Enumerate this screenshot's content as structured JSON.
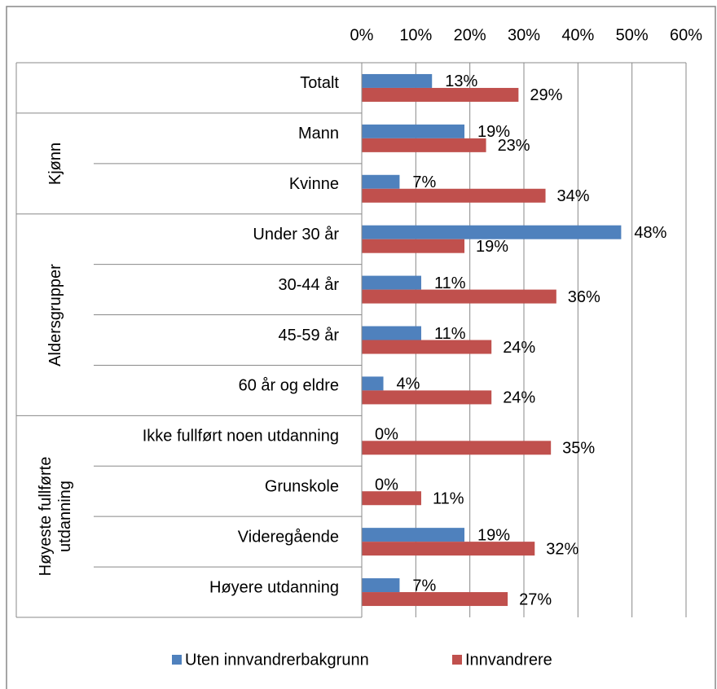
{
  "chart_data": {
    "type": "bar",
    "orientation": "horizontal",
    "groups": [
      {
        "name": null,
        "categories": [
          "Totalt"
        ]
      },
      {
        "name": "Kjønn",
        "categories": [
          "Mann",
          "Kvinne"
        ]
      },
      {
        "name": "Aldersgrupper",
        "categories": [
          "Under 30 år",
          "30-44 år",
          "45-59 år",
          "60 år og eldre"
        ]
      },
      {
        "name": "Høyeste fullførte utdanning",
        "categories": [
          "Ikke fullført noen utdanning",
          "Grunskole",
          "Videregående",
          "Høyere utdanning"
        ]
      }
    ],
    "series": [
      {
        "name": "Uten innvandrerbakgrunn",
        "color": "#4f81bd",
        "values": [
          13,
          19,
          7,
          48,
          11,
          11,
          4,
          0,
          0,
          19,
          7
        ],
        "value_labels": [
          "13%",
          "19%",
          "7%",
          "48%",
          "11%",
          "11%",
          "4%",
          "0%",
          "0%",
          "19%",
          "7%"
        ]
      },
      {
        "name": "Innvandrere",
        "color": "#c0504d",
        "values": [
          29,
          23,
          34,
          19,
          36,
          24,
          24,
          35,
          11,
          32,
          27
        ],
        "value_labels": [
          "29%",
          "23%",
          "34%",
          "19%",
          "36%",
          "24%",
          "24%",
          "35%",
          "11%",
          "32%",
          "27%"
        ]
      }
    ],
    "xlim": [
      0,
      60
    ],
    "xticks": [
      {
        "value": 0,
        "label": "0%"
      },
      {
        "value": 10,
        "label": "10%"
      },
      {
        "value": 20,
        "label": "20%"
      },
      {
        "value": 30,
        "label": "30%"
      },
      {
        "value": 40,
        "label": "40%"
      },
      {
        "value": 50,
        "label": "50%"
      },
      {
        "value": 60,
        "label": "60%"
      }
    ],
    "grid": true,
    "legend": "bottom"
  }
}
